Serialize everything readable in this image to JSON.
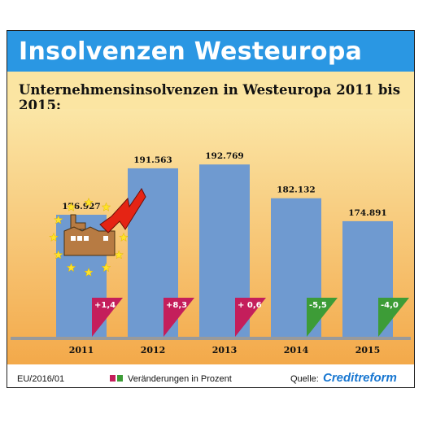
{
  "header": {
    "title": "Insolvenzen Westeuropa"
  },
  "footer": {
    "code": "EU/2016/01",
    "legend_label": "Veränderungen in Prozent",
    "source_label": "Quelle:",
    "source_brand": "Creditreform"
  },
  "colors": {
    "header_bg": "#2a97e3",
    "bar": "#6f9ad0",
    "positive": "#c41e5b",
    "negative": "#3d9c37",
    "background_top": "#fbe6a6",
    "background_bottom": "#f3a94a"
  },
  "chart_data": {
    "type": "bar",
    "title": "Unternehmensinsolvenzen in Westeuropa 2011 bis 2015:",
    "categories": [
      "2011",
      "2012",
      "2013",
      "2014",
      "2015"
    ],
    "values": [
      176927,
      191563,
      192769,
      182132,
      174891
    ],
    "value_labels": [
      "176.927",
      "191.563",
      "192.769",
      "182.132",
      "174.891"
    ],
    "changes": [
      1.4,
      8.3,
      0.6,
      -5.5,
      -4.0
    ],
    "change_labels": [
      "+1,4",
      "+8,3",
      "+ 0,6",
      "-5,5",
      "-4,0"
    ],
    "icon": "factory-with-eu-stars-icon"
  }
}
